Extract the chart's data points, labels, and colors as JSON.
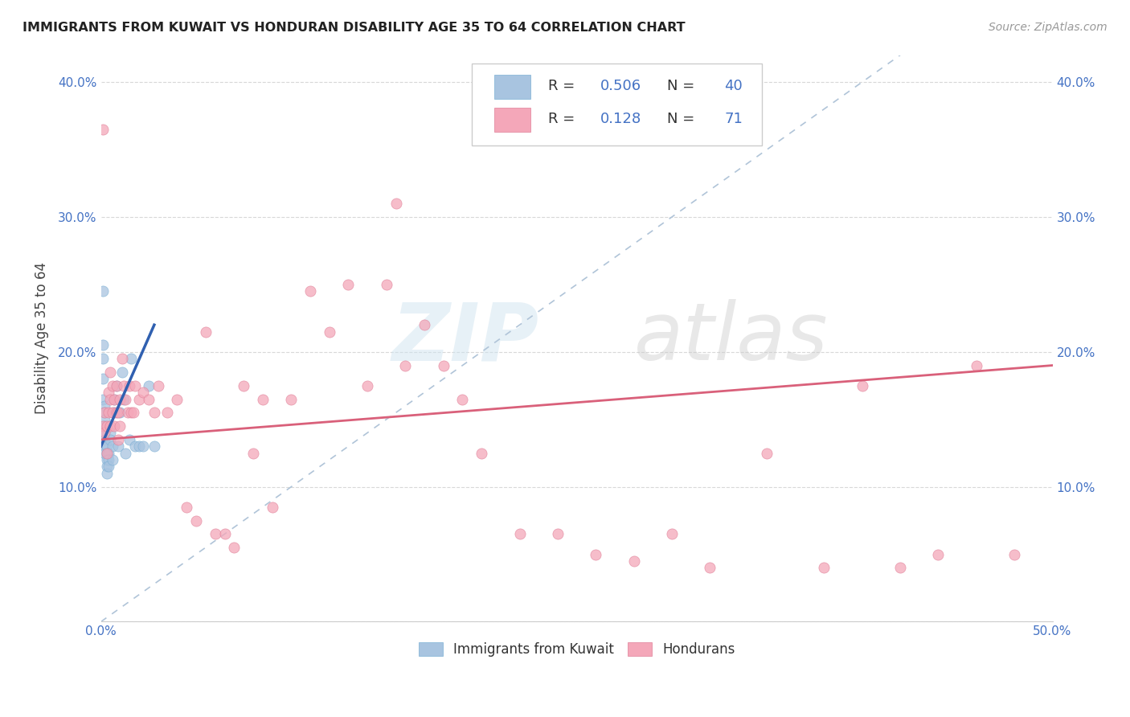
{
  "title": "IMMIGRANTS FROM KUWAIT VS HONDURAN DISABILITY AGE 35 TO 64 CORRELATION CHART",
  "source": "Source: ZipAtlas.com",
  "ylabel": "Disability Age 35 to 64",
  "xlim": [
    0.0,
    0.5
  ],
  "ylim": [
    0.0,
    0.42
  ],
  "xticks": [
    0.0,
    0.1,
    0.2,
    0.3,
    0.4,
    0.5
  ],
  "xticklabels": [
    "0.0%",
    "",
    "",
    "",
    "",
    "50.0%"
  ],
  "yticks": [
    0.0,
    0.1,
    0.2,
    0.3,
    0.4
  ],
  "yticklabels_left": [
    "",
    "10.0%",
    "20.0%",
    "30.0%",
    "40.0%"
  ],
  "yticklabels_right": [
    "",
    "10.0%",
    "20.0%",
    "30.0%",
    "40.0%"
  ],
  "legend_labels": [
    "Immigrants from Kuwait",
    "Hondurans"
  ],
  "r_kuwait": 0.506,
  "n_kuwait": 40,
  "r_honduran": 0.128,
  "n_honduran": 71,
  "color_kuwait": "#a8c4e0",
  "color_honduran": "#f4a7b9",
  "color_blue_text": "#4472c4",
  "kuwait_scatter_x": [
    0.001,
    0.001,
    0.001,
    0.001,
    0.001,
    0.002,
    0.002,
    0.002,
    0.002,
    0.002,
    0.002,
    0.002,
    0.002,
    0.003,
    0.003,
    0.003,
    0.003,
    0.003,
    0.004,
    0.004,
    0.004,
    0.005,
    0.005,
    0.006,
    0.006,
    0.007,
    0.007,
    0.008,
    0.009,
    0.01,
    0.011,
    0.012,
    0.013,
    0.015,
    0.016,
    0.018,
    0.02,
    0.022,
    0.025,
    0.028
  ],
  "kuwait_scatter_y": [
    0.245,
    0.205,
    0.195,
    0.18,
    0.165,
    0.16,
    0.155,
    0.15,
    0.145,
    0.14,
    0.135,
    0.13,
    0.125,
    0.13,
    0.125,
    0.12,
    0.115,
    0.11,
    0.125,
    0.12,
    0.115,
    0.14,
    0.135,
    0.13,
    0.12,
    0.165,
    0.155,
    0.175,
    0.13,
    0.155,
    0.185,
    0.165,
    0.125,
    0.135,
    0.195,
    0.13,
    0.13,
    0.13,
    0.175,
    0.13
  ],
  "honduran_scatter_x": [
    0.001,
    0.001,
    0.002,
    0.002,
    0.003,
    0.003,
    0.004,
    0.004,
    0.005,
    0.005,
    0.005,
    0.006,
    0.006,
    0.007,
    0.007,
    0.008,
    0.008,
    0.009,
    0.009,
    0.01,
    0.01,
    0.011,
    0.012,
    0.013,
    0.014,
    0.015,
    0.016,
    0.017,
    0.018,
    0.02,
    0.022,
    0.025,
    0.028,
    0.03,
    0.035,
    0.04,
    0.045,
    0.05,
    0.055,
    0.06,
    0.065,
    0.07,
    0.075,
    0.08,
    0.085,
    0.09,
    0.1,
    0.11,
    0.12,
    0.13,
    0.14,
    0.15,
    0.155,
    0.16,
    0.17,
    0.18,
    0.19,
    0.2,
    0.22,
    0.24,
    0.26,
    0.28,
    0.3,
    0.32,
    0.35,
    0.38,
    0.4,
    0.42,
    0.44,
    0.46,
    0.48
  ],
  "honduran_scatter_y": [
    0.145,
    0.365,
    0.155,
    0.14,
    0.145,
    0.125,
    0.17,
    0.155,
    0.185,
    0.165,
    0.145,
    0.175,
    0.155,
    0.165,
    0.145,
    0.175,
    0.155,
    0.155,
    0.135,
    0.165,
    0.145,
    0.195,
    0.175,
    0.165,
    0.155,
    0.175,
    0.155,
    0.155,
    0.175,
    0.165,
    0.17,
    0.165,
    0.155,
    0.175,
    0.155,
    0.165,
    0.085,
    0.075,
    0.215,
    0.065,
    0.065,
    0.055,
    0.175,
    0.125,
    0.165,
    0.085,
    0.165,
    0.245,
    0.215,
    0.25,
    0.175,
    0.25,
    0.31,
    0.19,
    0.22,
    0.19,
    0.165,
    0.125,
    0.065,
    0.065,
    0.05,
    0.045,
    0.065,
    0.04,
    0.125,
    0.04,
    0.175,
    0.04,
    0.05,
    0.19,
    0.05
  ],
  "kuwait_trend_x": [
    0.0,
    0.028
  ],
  "kuwait_trend_y": [
    0.13,
    0.22
  ],
  "honduran_trend_x": [
    0.0,
    0.5
  ],
  "honduran_trend_y": [
    0.135,
    0.19
  ],
  "dashed_line_x": [
    0.0,
    0.42
  ],
  "dashed_line_y": [
    0.0,
    0.42
  ]
}
